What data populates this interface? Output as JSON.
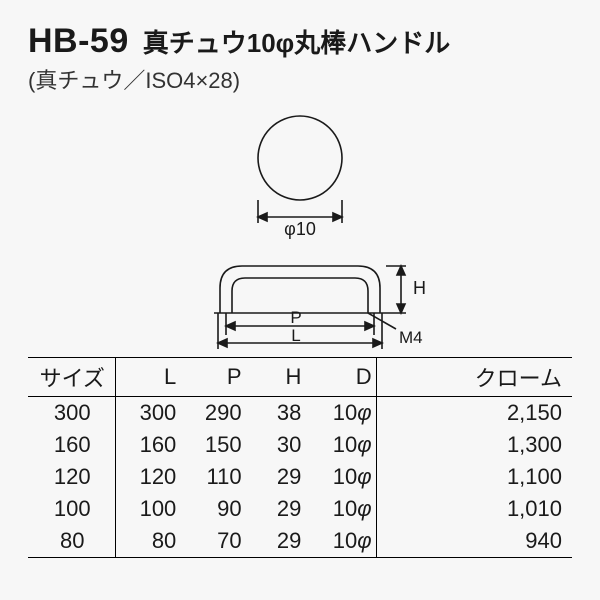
{
  "header": {
    "model": "HB-59",
    "title_jp": "真チュウ10φ丸棒ハンドル",
    "subtitle": "(真チュウ／ISO4×28)"
  },
  "diagram": {
    "circle_label": "φ10",
    "dim_P": "P",
    "dim_L": "L",
    "dim_H": "H",
    "dim_M": "M4",
    "stroke": "#1a1a1a",
    "stroke_w": 1.6
  },
  "table": {
    "columns": [
      "サイズ",
      "L",
      "P",
      "H",
      "D",
      "クローム"
    ],
    "rows": [
      [
        "300",
        "300",
        "290",
        "38",
        "10φ",
        "2,150"
      ],
      [
        "160",
        "160",
        "150",
        "30",
        "10φ",
        "1,300"
      ],
      [
        "120",
        "120",
        "110",
        "29",
        "10φ",
        "1,100"
      ],
      [
        "100",
        "100",
        "90",
        "29",
        "10φ",
        "1,010"
      ],
      [
        "80",
        "80",
        "70",
        "29",
        "10φ",
        "940"
      ]
    ],
    "col_widths": [
      "16%",
      "12%",
      "12%",
      "11%",
      "13%",
      "36%"
    ]
  },
  "style": {
    "header_fontsize": 34,
    "jp_fontsize": 26,
    "sub_fontsize": 22,
    "table_fontsize": 22,
    "border_color": "#000000",
    "bg": "#f7f7f7"
  }
}
